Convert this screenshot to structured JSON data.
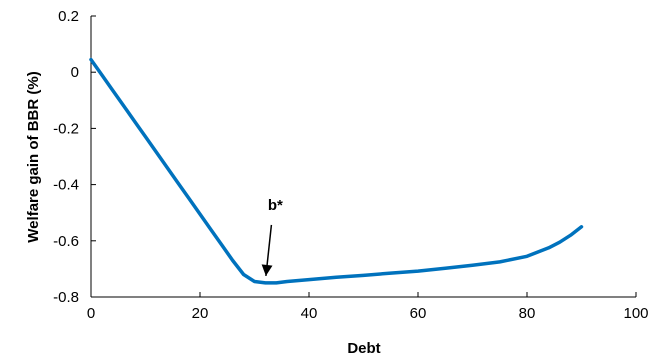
{
  "chart_data": {
    "type": "line",
    "title": "",
    "xlabel": "Debt",
    "ylabel": "Welfare gain of BBR (%)",
    "xlim": [
      0,
      100
    ],
    "ylim": [
      -0.8,
      0.2
    ],
    "x_ticks": [
      0,
      20,
      40,
      60,
      80,
      100
    ],
    "y_ticks": [
      0.2,
      0,
      -0.2,
      -0.4,
      -0.6,
      -0.8
    ],
    "x_tick_labels": [
      "0",
      "20",
      "40",
      "60",
      "80",
      "100"
    ],
    "y_tick_labels": [
      "0.2",
      "0",
      "-0.2",
      "-0.4",
      "-0.6",
      "-0.8"
    ],
    "grid": false,
    "series": [
      {
        "color": "#0072BD",
        "x": [
          0,
          2,
          4,
          6,
          8,
          10,
          12,
          14,
          16,
          18,
          20,
          22,
          24,
          26,
          28,
          30,
          32,
          34,
          36,
          40,
          45,
          50,
          55,
          60,
          65,
          70,
          75,
          80,
          82,
          84,
          86,
          88,
          90
        ],
        "y": [
          0.045,
          -0.01,
          -0.065,
          -0.12,
          -0.175,
          -0.23,
          -0.285,
          -0.34,
          -0.395,
          -0.45,
          -0.505,
          -0.56,
          -0.615,
          -0.67,
          -0.72,
          -0.745,
          -0.75,
          -0.75,
          -0.745,
          -0.738,
          -0.73,
          -0.723,
          -0.715,
          -0.708,
          -0.698,
          -0.687,
          -0.675,
          -0.655,
          -0.64,
          -0.625,
          -0.605,
          -0.58,
          -0.55
        ]
      }
    ],
    "annotations": [
      {
        "text": "b*",
        "arrow_to": [
          32,
          -0.75
        ]
      }
    ]
  }
}
